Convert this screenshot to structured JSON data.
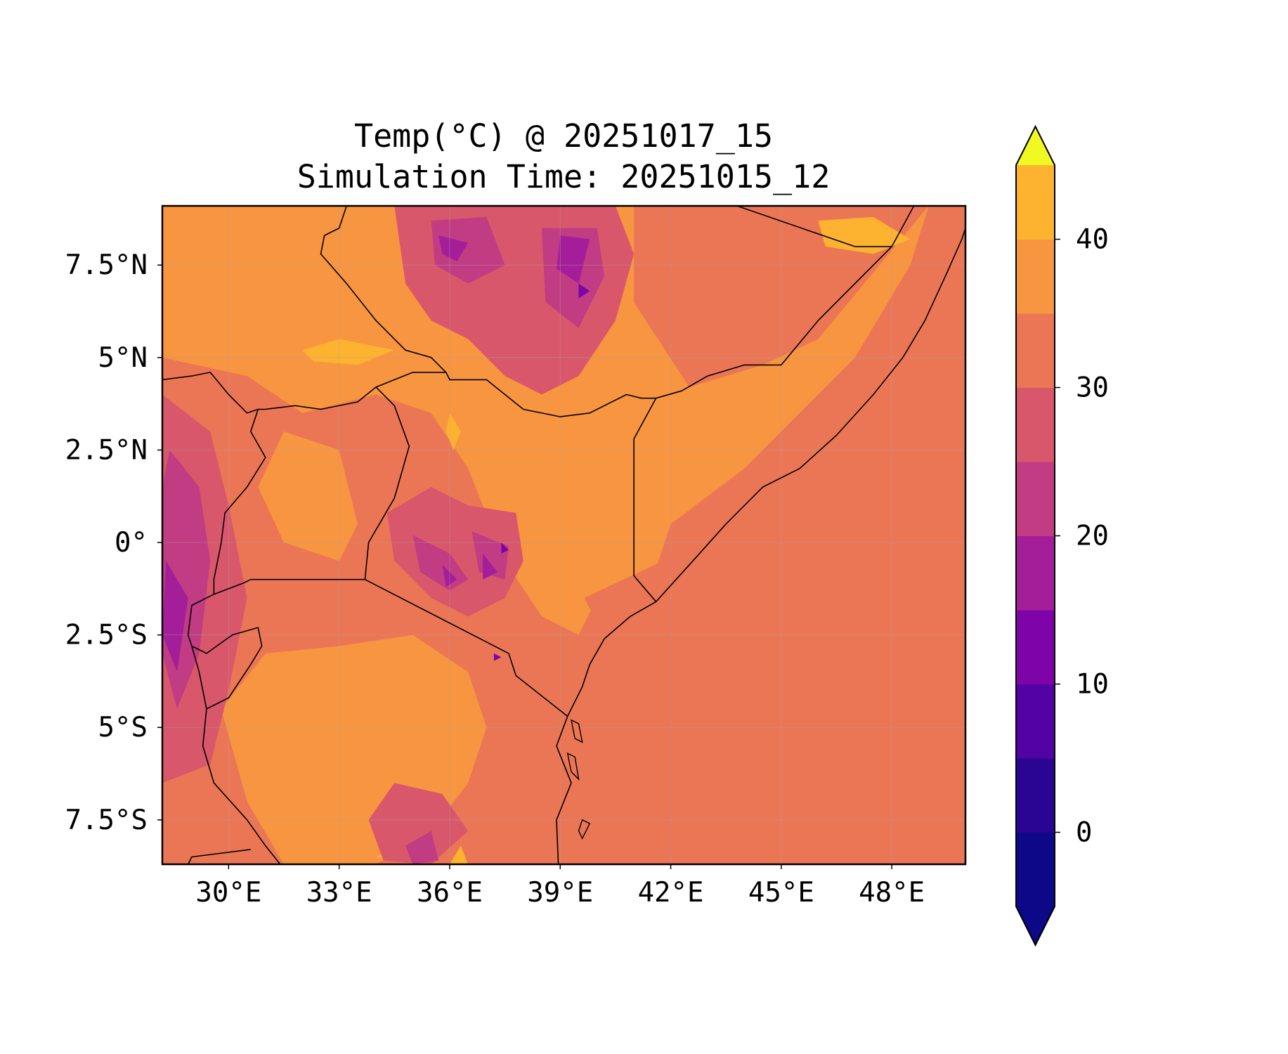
{
  "title": {
    "line1": "Temp(°C) @ 20251017_15",
    "line2": "Simulation Time: 20251015_12"
  },
  "map": {
    "variable": "Temperature",
    "units": "°C",
    "extent": {
      "lon": [
        28.2,
        50.0
      ],
      "lat": [
        -8.7,
        9.1
      ]
    },
    "lon_ticks": [
      {
        "value": 30,
        "label": "30°E"
      },
      {
        "value": 33,
        "label": "33°E"
      },
      {
        "value": 36,
        "label": "36°E"
      },
      {
        "value": 39,
        "label": "39°E"
      },
      {
        "value": 42,
        "label": "42°E"
      },
      {
        "value": 45,
        "label": "45°E"
      },
      {
        "value": 48,
        "label": "48°E"
      }
    ],
    "lat_ticks": [
      {
        "value": 7.5,
        "label": "7.5°N"
      },
      {
        "value": 5,
        "label": "5°N"
      },
      {
        "value": 2.5,
        "label": "2.5°N"
      },
      {
        "value": 0,
        "label": "0°"
      },
      {
        "value": -2.5,
        "label": "2.5°S"
      },
      {
        "value": -5,
        "label": "5°S"
      },
      {
        "value": -7.5,
        "label": "7.5°S"
      }
    ],
    "gridlines": true,
    "background_level": 30,
    "regions": [
      {
        "level": 35,
        "poly": [
          [
            28.2,
            9.1
          ],
          [
            41.0,
            9.1
          ],
          [
            41.0,
            6.5
          ],
          [
            42.5,
            4.2
          ],
          [
            44.5,
            4.8
          ],
          [
            46.0,
            5.5
          ],
          [
            49.0,
            9.1
          ],
          [
            48.5,
            7.5
          ],
          [
            47.0,
            5.0
          ],
          [
            44.0,
            2.0
          ],
          [
            42.0,
            0.5
          ],
          [
            41.5,
            -1.0
          ],
          [
            40.0,
            -1.5
          ],
          [
            39.5,
            -2.5
          ],
          [
            38.5,
            -2.0
          ],
          [
            37.5,
            -0.5
          ],
          [
            36.5,
            2.0
          ],
          [
            35.5,
            3.5
          ],
          [
            34.0,
            4.0
          ],
          [
            32.0,
            3.5
          ],
          [
            30.5,
            4.5
          ],
          [
            28.2,
            5.0
          ]
        ]
      },
      {
        "level": 35,
        "poly": [
          [
            29.8,
            -4.5
          ],
          [
            31.0,
            -3.0
          ],
          [
            33.0,
            -2.8
          ],
          [
            35.0,
            -2.5
          ],
          [
            36.5,
            -3.5
          ],
          [
            37.0,
            -5.0
          ],
          [
            36.5,
            -6.5
          ],
          [
            35.5,
            -7.8
          ],
          [
            34.0,
            -8.7
          ],
          [
            31.5,
            -8.7
          ],
          [
            30.5,
            -7.0
          ]
        ]
      },
      {
        "level": 35,
        "poly": [
          [
            31.5,
            0.0
          ],
          [
            33.0,
            -0.5
          ],
          [
            33.5,
            0.5
          ],
          [
            33.0,
            2.5
          ],
          [
            31.5,
            3.0
          ],
          [
            30.8,
            1.5
          ]
        ]
      },
      {
        "level": 40,
        "poly": [
          [
            32.0,
            5.2
          ],
          [
            33.0,
            5.5
          ],
          [
            34.5,
            5.2
          ],
          [
            33.5,
            4.8
          ],
          [
            32.3,
            4.9
          ]
        ]
      },
      {
        "level": 40,
        "poly": [
          [
            36.0,
            3.5
          ],
          [
            36.3,
            3.0
          ],
          [
            36.1,
            2.5
          ],
          [
            35.9,
            3.0
          ]
        ]
      },
      {
        "level": 40,
        "poly": [
          [
            36.0,
            -8.7
          ],
          [
            36.3,
            -8.2
          ],
          [
            36.5,
            -8.7
          ]
        ]
      },
      {
        "level": 40,
        "poly": [
          [
            34.0,
            -8.5
          ],
          [
            34.5,
            -8.3
          ],
          [
            34.8,
            -8.6
          ]
        ]
      },
      {
        "level": 40,
        "poly": [
          [
            46.0,
            8.7
          ],
          [
            47.5,
            8.8
          ],
          [
            48.5,
            8.2
          ],
          [
            47.5,
            7.8
          ],
          [
            46.2,
            8.0
          ]
        ]
      },
      {
        "level": 25,
        "poly": [
          [
            28.2,
            4.0
          ],
          [
            29.5,
            3.0
          ],
          [
            30.0,
            1.0
          ],
          [
            30.5,
            -1.5
          ],
          [
            30.0,
            -4.0
          ],
          [
            29.5,
            -6.0
          ],
          [
            28.2,
            -6.5
          ]
        ]
      },
      {
        "level": 25,
        "poly": [
          [
            34.5,
            9.1
          ],
          [
            40.5,
            9.1
          ],
          [
            41.0,
            7.8
          ],
          [
            40.5,
            6.0
          ],
          [
            39.5,
            4.5
          ],
          [
            38.5,
            4.0
          ],
          [
            37.5,
            4.5
          ],
          [
            36.5,
            5.5
          ],
          [
            35.5,
            6.0
          ],
          [
            34.8,
            7.0
          ]
        ]
      },
      {
        "level": 25,
        "poly": [
          [
            35.5,
            1.5
          ],
          [
            36.5,
            1.0
          ],
          [
            37.8,
            0.8
          ],
          [
            38.0,
            -0.5
          ],
          [
            37.5,
            -1.5
          ],
          [
            36.5,
            -2.0
          ],
          [
            35.5,
            -1.5
          ],
          [
            34.5,
            -0.5
          ],
          [
            34.3,
            0.8
          ]
        ]
      },
      {
        "level": 25,
        "poly": [
          [
            34.5,
            -6.5
          ],
          [
            35.8,
            -6.8
          ],
          [
            36.5,
            -7.8
          ],
          [
            35.5,
            -8.7
          ],
          [
            34.2,
            -8.6
          ],
          [
            33.8,
            -7.5
          ]
        ]
      },
      {
        "level": 20,
        "poly": [
          [
            28.4,
            2.5
          ],
          [
            29.2,
            1.5
          ],
          [
            29.5,
            -0.5
          ],
          [
            29.2,
            -3.0
          ],
          [
            28.6,
            -4.5
          ],
          [
            28.2,
            -3.0
          ],
          [
            28.2,
            1.5
          ]
        ]
      },
      {
        "level": 20,
        "poly": [
          [
            35.5,
            8.7
          ],
          [
            37.0,
            8.8
          ],
          [
            37.5,
            7.5
          ],
          [
            36.5,
            7.0
          ],
          [
            35.6,
            7.5
          ]
        ]
      },
      {
        "level": 20,
        "poly": [
          [
            38.5,
            8.5
          ],
          [
            40.0,
            8.5
          ],
          [
            40.2,
            7.2
          ],
          [
            39.5,
            5.8
          ],
          [
            38.6,
            6.5
          ]
        ]
      },
      {
        "level": 20,
        "poly": [
          [
            35.0,
            0.2
          ],
          [
            36.0,
            -0.3
          ],
          [
            36.5,
            -1.0
          ],
          [
            36.0,
            -1.3
          ],
          [
            35.2,
            -0.8
          ]
        ]
      },
      {
        "level": 20,
        "poly": [
          [
            36.6,
            0.3
          ],
          [
            37.6,
            -0.1
          ],
          [
            37.5,
            -1.0
          ],
          [
            36.8,
            -0.8
          ]
        ]
      },
      {
        "level": 20,
        "poly": [
          [
            34.8,
            -8.2
          ],
          [
            35.5,
            -7.8
          ],
          [
            35.7,
            -8.6
          ],
          [
            35.0,
            -8.7
          ]
        ]
      },
      {
        "level": 15,
        "poly": [
          [
            28.3,
            -0.5
          ],
          [
            28.9,
            -1.5
          ],
          [
            28.6,
            -3.5
          ],
          [
            28.2,
            -2.5
          ]
        ]
      },
      {
        "level": 15,
        "poly": [
          [
            39.0,
            8.3
          ],
          [
            39.8,
            8.2
          ],
          [
            39.5,
            7.0
          ],
          [
            38.9,
            7.4
          ]
        ]
      },
      {
        "level": 15,
        "poly": [
          [
            35.7,
            8.3
          ],
          [
            36.5,
            8.1
          ],
          [
            36.2,
            7.6
          ],
          [
            35.8,
            7.8
          ]
        ]
      },
      {
        "level": 15,
        "poly": [
          [
            35.8,
            -0.6
          ],
          [
            36.2,
            -1.0
          ],
          [
            35.9,
            -1.2
          ]
        ]
      },
      {
        "level": 15,
        "poly": [
          [
            36.9,
            -0.3
          ],
          [
            37.3,
            -0.8
          ],
          [
            36.9,
            -1.0
          ]
        ]
      },
      {
        "level": 10,
        "poly": [
          [
            39.5,
            7.0
          ],
          [
            39.8,
            6.8
          ],
          [
            39.5,
            6.6
          ]
        ]
      },
      {
        "level": 10,
        "poly": [
          [
            37.4,
            0.0
          ],
          [
            37.6,
            -0.2
          ],
          [
            37.4,
            -0.3
          ]
        ]
      },
      {
        "level": 10,
        "poly": [
          [
            37.2,
            -3.0
          ],
          [
            37.4,
            -3.1
          ],
          [
            37.2,
            -3.2
          ]
        ]
      }
    ],
    "water": [
      [
        [
          39.65,
          -1.5
        ],
        [
          42.0,
          -0.4
        ],
        [
          43.0,
          0.8
        ],
        [
          44.8,
          2.0
        ],
        [
          46.5,
          3.2
        ],
        [
          47.7,
          4.7
        ],
        [
          48.8,
          6.5
        ],
        [
          49.5,
          8.0
        ],
        [
          50.0,
          8.6
        ],
        [
          50.0,
          -8.7
        ],
        [
          39.5,
          -8.7
        ],
        [
          39.2,
          -6.8
        ],
        [
          38.8,
          -5.5
        ],
        [
          39.0,
          -4.3
        ],
        [
          39.6,
          -3.3
        ],
        [
          40.2,
          -2.5
        ]
      ]
    ],
    "borders": [
      [
        [
          33.7,
          -1.0
        ],
        [
          37.6,
          -3.0
        ],
        [
          37.8,
          -3.6
        ],
        [
          39.2,
          -4.7
        ]
      ],
      [
        [
          33.7,
          -1.0
        ],
        [
          33.8,
          0.0
        ],
        [
          34.5,
          1.2
        ],
        [
          34.9,
          2.6
        ],
        [
          34.5,
          3.7
        ],
        [
          34.0,
          4.2
        ],
        [
          35.0,
          4.6
        ],
        [
          35.9,
          4.6
        ],
        [
          36.0,
          4.4
        ],
        [
          37.0,
          4.4
        ],
        [
          38.0,
          3.6
        ],
        [
          39.0,
          3.4
        ],
        [
          39.8,
          3.5
        ],
        [
          40.8,
          4.0
        ],
        [
          41.2,
          3.9
        ],
        [
          41.6,
          3.9
        ],
        [
          41.0,
          2.8
        ],
        [
          41.0,
          -0.9
        ],
        [
          41.6,
          -1.6
        ]
      ],
      [
        [
          41.6,
          3.9
        ],
        [
          42.3,
          4.1
        ],
        [
          43.0,
          4.5
        ],
        [
          44.0,
          4.8
        ],
        [
          45.0,
          4.8
        ],
        [
          46.0,
          6.0
        ],
        [
          47.0,
          7.0
        ],
        [
          48.0,
          8.0
        ],
        [
          48.6,
          9.1
        ]
      ],
      [
        [
          43.8,
          9.1
        ],
        [
          47.0,
          8.0
        ],
        [
          48.0,
          8.0
        ]
      ],
      [
        [
          34.0,
          4.2
        ],
        [
          33.5,
          3.8
        ],
        [
          32.5,
          3.6
        ],
        [
          31.8,
          3.7
        ],
        [
          31.0,
          3.6
        ],
        [
          30.8,
          3.6
        ],
        [
          30.5,
          3.5
        ],
        [
          30.0,
          4.0
        ],
        [
          29.5,
          4.6
        ],
        [
          29.0,
          4.5
        ],
        [
          28.2,
          4.4
        ]
      ],
      [
        [
          30.8,
          3.6
        ],
        [
          30.6,
          3.0
        ],
        [
          31.0,
          2.3
        ],
        [
          30.5,
          1.5
        ],
        [
          29.9,
          0.8
        ],
        [
          29.8,
          0.0
        ],
        [
          29.6,
          -1.0
        ],
        [
          29.6,
          -1.4
        ],
        [
          30.4,
          -1.1
        ],
        [
          30.6,
          -1.0
        ],
        [
          33.7,
          -1.0
        ]
      ],
      [
        [
          29.6,
          -1.4
        ],
        [
          29.0,
          -1.7
        ],
        [
          28.9,
          -2.5
        ],
        [
          29.0,
          -2.8
        ],
        [
          29.4,
          -3.0
        ],
        [
          30.1,
          -2.5
        ],
        [
          30.8,
          -2.3
        ],
        [
          30.9,
          -2.8
        ],
        [
          30.6,
          -3.3
        ],
        [
          30.0,
          -4.2
        ],
        [
          29.4,
          -4.5
        ]
      ],
      [
        [
          29.0,
          -2.8
        ],
        [
          29.2,
          -3.5
        ],
        [
          29.4,
          -4.5
        ],
        [
          29.3,
          -5.5
        ],
        [
          29.6,
          -6.5
        ],
        [
          30.5,
          -7.5
        ],
        [
          31.0,
          -8.2
        ],
        [
          31.4,
          -8.7
        ]
      ],
      [
        [
          30.6,
          -8.3
        ],
        [
          29.0,
          -8.5
        ],
        [
          28.9,
          -8.7
        ]
      ],
      [
        [
          35.9,
          4.6
        ],
        [
          35.5,
          5.0
        ],
        [
          34.8,
          5.2
        ],
        [
          34.0,
          6.0
        ],
        [
          33.2,
          7.0
        ],
        [
          32.5,
          7.8
        ],
        [
          32.6,
          8.3
        ],
        [
          33.0,
          8.5
        ],
        [
          33.2,
          9.1
        ]
      ]
    ],
    "coastline": [
      [
        38.95,
        -8.7
      ],
      [
        38.9,
        -7.5
      ],
      [
        39.3,
        -6.5
      ],
      [
        38.9,
        -5.5
      ],
      [
        39.2,
        -4.7
      ],
      [
        39.6,
        -3.9
      ],
      [
        39.8,
        -3.3
      ],
      [
        40.2,
        -2.6
      ],
      [
        40.9,
        -2.0
      ],
      [
        41.6,
        -1.6
      ],
      [
        42.6,
        -0.5
      ],
      [
        43.5,
        0.5
      ],
      [
        44.5,
        1.5
      ],
      [
        45.5,
        2.0
      ],
      [
        46.5,
        2.9
      ],
      [
        47.5,
        4.0
      ],
      [
        48.3,
        5.0
      ],
      [
        48.9,
        6.0
      ],
      [
        49.5,
        7.3
      ],
      [
        49.9,
        8.2
      ],
      [
        50.0,
        8.5
      ]
    ],
    "islands": [
      [
        [
          39.3,
          -4.8
        ],
        [
          39.5,
          -4.9
        ],
        [
          39.6,
          -5.4
        ],
        [
          39.4,
          -5.3
        ]
      ],
      [
        [
          39.2,
          -5.7
        ],
        [
          39.4,
          -5.8
        ],
        [
          39.5,
          -6.4
        ],
        [
          39.3,
          -6.2
        ]
      ],
      [
        [
          39.6,
          -7.5
        ],
        [
          39.8,
          -7.6
        ],
        [
          39.6,
          -8.0
        ],
        [
          39.5,
          -7.8
        ]
      ]
    ]
  },
  "colorbar": {
    "levels": [
      -5,
      0,
      5,
      10,
      15,
      20,
      25,
      30,
      35,
      40,
      45
    ],
    "colors": [
      "#0d0887",
      "#2a0593",
      "#5302a3",
      "#7e03a8",
      "#a41e9a",
      "#c13c83",
      "#d8576b",
      "#eb7655",
      "#f89540",
      "#fdb32f",
      "#f4e225"
    ],
    "under_color": "#0d0887",
    "over_color": "#f0f921",
    "ticks": [
      {
        "value": 0,
        "label": "0"
      },
      {
        "value": 10,
        "label": "10"
      },
      {
        "value": 20,
        "label": "20"
      },
      {
        "value": 30,
        "label": "30"
      },
      {
        "value": 40,
        "label": "40"
      }
    ],
    "extend": "both"
  }
}
